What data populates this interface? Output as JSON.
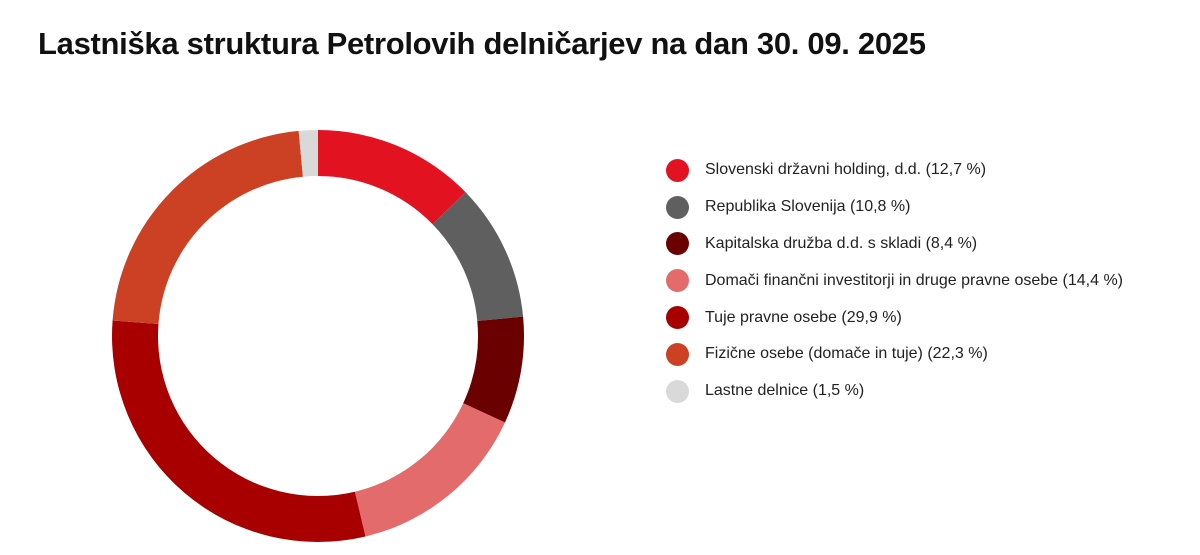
{
  "title": "Lastniška struktura Petrolovih delničarjev na dan 30. 09. 2025",
  "chart_data": {
    "type": "pie",
    "variant": "donut",
    "title": "Lastniška struktura Petrolovih delničarjev na dan 30. 09. 2025",
    "legend_position": "right",
    "series": [
      {
        "label": "Slovenski državni holding, d.d. (12,7 %)",
        "value": 12.7,
        "color": "#e31221"
      },
      {
        "label": "Republika Slovenija (10,8 %)",
        "value": 10.8,
        "color": "#5f5f5f"
      },
      {
        "label": "Kapitalska družba d.d. s skladi (8,4 %)",
        "value": 8.4,
        "color": "#6b0000"
      },
      {
        "label": "Domači finančni investitorji in druge pravne osebe (14,4 %)",
        "value": 14.4,
        "color": "#e36b6b"
      },
      {
        "label": "Tuje pravne osebe (29,9 %)",
        "value": 29.9,
        "color": "#a80000"
      },
      {
        "label": "Fizične osebe (domače in tuje) (22,3 %)",
        "value": 22.3,
        "color": "#cc4124"
      },
      {
        "label": "Lastne delnice (1,5 %)",
        "value": 1.5,
        "color": "#d9d9d9"
      }
    ]
  }
}
